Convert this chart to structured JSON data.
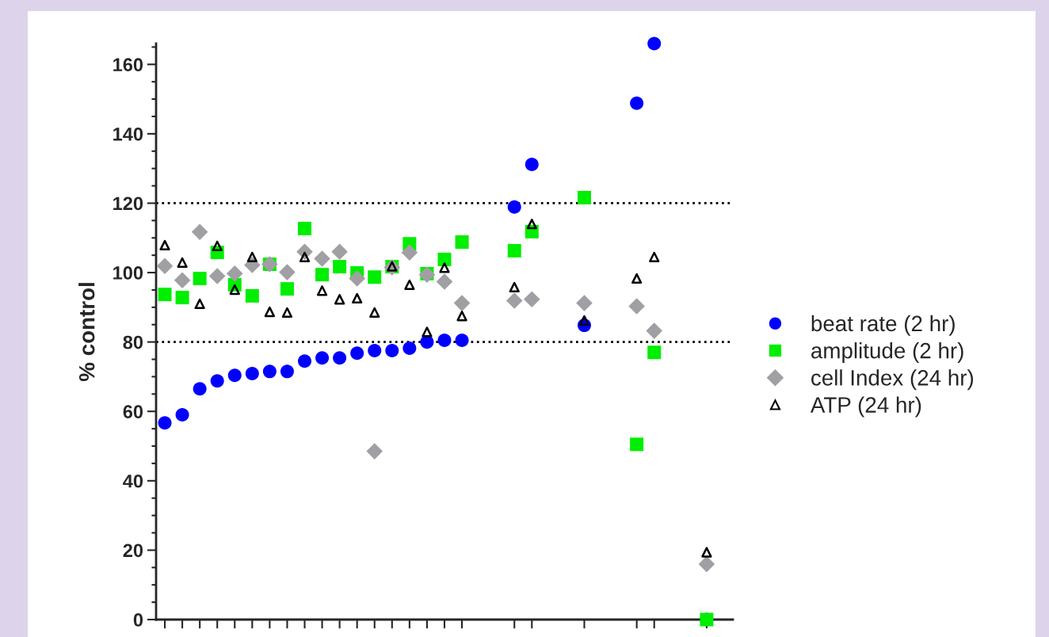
{
  "chart_data": {
    "type": "scatter",
    "ylabel": "% control",
    "categories": [
      null,
      null,
      null,
      null,
      null,
      null,
      null,
      null,
      null,
      null,
      null,
      null,
      null,
      null,
      null,
      null,
      null,
      null,
      null,
      null,
      null,
      null,
      null,
      null,
      null,
      null,
      null,
      null,
      null,
      null,
      null,
      null,
      null
    ],
    "ylim": [
      0,
      166
    ],
    "yticks": [
      0,
      20,
      40,
      60,
      80,
      100,
      120,
      140,
      160
    ],
    "tick_labels": "y",
    "grid": false,
    "legend": "right",
    "ref_lines": [
      {
        "axis": "y",
        "value": 80,
        "color": "#000000",
        "line_style": "dotted"
      },
      {
        "axis": "y",
        "value": 120,
        "color": "#000000",
        "line_style": "dotted"
      }
    ],
    "series": [
      {
        "name": "beat rate (2 hr)",
        "color": "#0000ff",
        "marker": "circle",
        "values": [
          56.7,
          59,
          66.5,
          68.8,
          70.4,
          70.9,
          71.5,
          71.5,
          74.5,
          75.4,
          75.4,
          76.8,
          77.5,
          77.5,
          78.2,
          80,
          80.5,
          80.5,
          null,
          null,
          118.9,
          131.2,
          null,
          null,
          84.8,
          null,
          null,
          148.8,
          166,
          null,
          null,
          0,
          null
        ]
      },
      {
        "name": "amplitude (2 hr)",
        "color": "#00ee00",
        "marker": "square",
        "values": [
          93.7,
          92.8,
          98.3,
          105.8,
          96.5,
          93.3,
          102.4,
          95.3,
          112.7,
          99.4,
          101.7,
          99.9,
          98.7,
          101.7,
          108.3,
          99.7,
          103.8,
          108.8,
          null,
          null,
          106.3,
          111.8,
          null,
          null,
          121.6,
          null,
          null,
          50.5,
          77,
          null,
          null,
          0,
          null
        ]
      },
      {
        "name": "cell Index (24 hr)",
        "color": "#a0a0a4",
        "marker": "diamond",
        "values": [
          101.9,
          97.8,
          111.7,
          99,
          99.7,
          102.2,
          102.4,
          100.1,
          106,
          104,
          106,
          98.3,
          48.5,
          101.5,
          105.8,
          99.4,
          97.4,
          91.2,
          null,
          null,
          91.9,
          92.3,
          null,
          null,
          91.2,
          null,
          null,
          90.3,
          83.2,
          null,
          null,
          16,
          null
        ]
      },
      {
        "name": "ATP (24 hr)",
        "color": "#000000",
        "marker": "triangle",
        "values": [
          107.9,
          102.9,
          91,
          107.7,
          95.1,
          104.5,
          88.7,
          88.5,
          104.5,
          94.8,
          92.3,
          92.6,
          88.5,
          101.8,
          96.5,
          82.9,
          101.4,
          87.5,
          null,
          null,
          95.8,
          114,
          null,
          null,
          86.2,
          null,
          null,
          98.3,
          104.5,
          null,
          null,
          19.4,
          null
        ]
      }
    ]
  }
}
